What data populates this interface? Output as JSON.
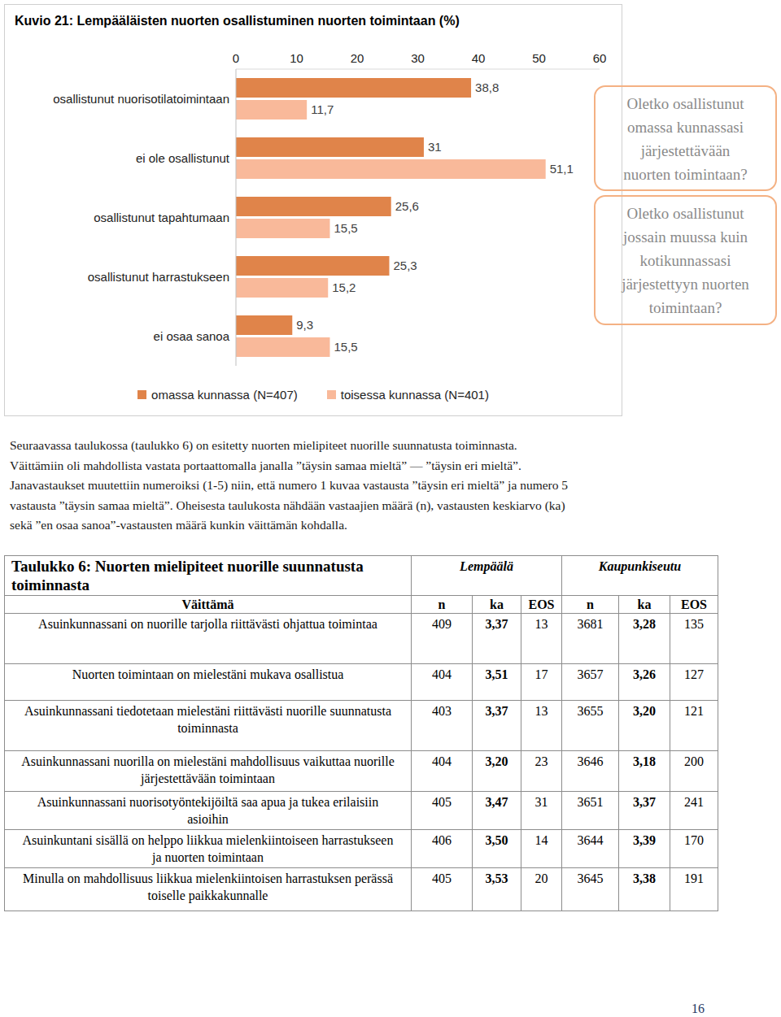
{
  "chart_data": {
    "type": "bar",
    "orientation": "horizontal",
    "title": "Kuvio 21: Lempääläisten nuorten osallistuminen nuorten toimintaan (%)",
    "categories": [
      "osallistunut nuorisotilatoimintaan",
      "ei ole osallistunut",
      "osallistunut tapahtumaan",
      "osallistunut harrastukseen",
      "ei osaa sanoa"
    ],
    "series": [
      {
        "name": "omassa kunnassa (N=407)",
        "color": "#e0844a",
        "values": [
          38.8,
          31,
          25.6,
          25.3,
          9.3
        ],
        "value_labels": [
          "38,8",
          "31",
          "25,6",
          "25,3",
          "9,3"
        ]
      },
      {
        "name": "toisessa kunnassa (N=401)",
        "color": "#f9b99a",
        "values": [
          11.7,
          51.1,
          15.5,
          15.2,
          15.5
        ],
        "value_labels": [
          "11,7",
          "51,1",
          "15,5",
          "15,2",
          "15,5"
        ]
      }
    ],
    "xlim": [
      0,
      60
    ],
    "xticks": [
      0,
      10,
      20,
      30,
      40,
      50,
      60
    ],
    "grid": false,
    "data_labels": true,
    "legend": "bottom",
    "annotations": [
      "Oletko osallistunut\nomassa kunnassasi\njärjestettävään\nnuorten toimintaan?",
      "Oletko osallistunut\njossain muussa kuin\nkotikunnassasi\njärjestettyyn nuorten\ntoimintaan?"
    ]
  },
  "paragraph_lines": [
    "Seuraavassa taulukossa (taulukko 6) on esitetty nuorten mielipiteet nuorille suunnatusta toiminnasta.",
    "Väittämiin oli mahdollista vastata portaattomalla janalla ”täysin samaa mieltä” — ”täysin eri mieltä”.",
    "Janavastaukset muutettiin numeroiksi (1-5) niin, että numero 1 kuvaa vastausta ”täysin eri mieltä” ja numero 5",
    "vastausta ”täysin samaa mieltä”. Oheisesta taulukosta nähdään vastaajien määrä (n), vastausten keskiarvo (ka)",
    "sekä ”en osaa sanoa”-vastausten määrä kunkin väittämän kohdalla."
  ],
  "table": {
    "title": "Taulukko 6: Nuorten mielipiteet nuorille suunnatusta toiminnasta",
    "groups": [
      "Lempäälä",
      "Kaupunkiseutu"
    ],
    "columns": [
      "Väittämä",
      "n",
      "ka",
      "EOS",
      "n",
      "ka",
      "EOS"
    ],
    "rows": [
      [
        "Asuinkunnassani on nuorille tarjolla riittävästi ohjattua toimintaa",
        409,
        "3,37",
        13,
        3681,
        "3,28",
        135
      ],
      [
        "Nuorten toimintaan on mielestäni mukava osallistua",
        404,
        "3,51",
        17,
        3657,
        "3,26",
        127
      ],
      [
        "Asuinkunnassani tiedotetaan mielestäni riittävästi nuorille suunnatusta toiminnasta",
        403,
        "3,37",
        13,
        3655,
        "3,20",
        121
      ],
      [
        "Asuinkunnassani nuorilla on mielestäni mahdollisuus vaikuttaa nuorille järjestettävään toimintaan",
        404,
        "3,20",
        23,
        3646,
        "3,18",
        200
      ],
      [
        "Asuinkunnassani nuorisotyöntekijöiltä saa apua ja tukea erilaisiin asioihin",
        405,
        "3,47",
        31,
        3651,
        "3,37",
        241
      ],
      [
        "Asuinkuntani sisällä on helppo liikkua mielenkiintoiseen harrastukseen ja nuorten toimintaan",
        406,
        "3,50",
        14,
        3644,
        "3,39",
        170
      ],
      [
        "Minulla on mahdollisuus liikkua mielenkiintoisen harrastuksen perässä toiselle paikkakunnalle",
        405,
        "3,53",
        20,
        3645,
        "3,38",
        191
      ]
    ]
  },
  "page_number": 16
}
